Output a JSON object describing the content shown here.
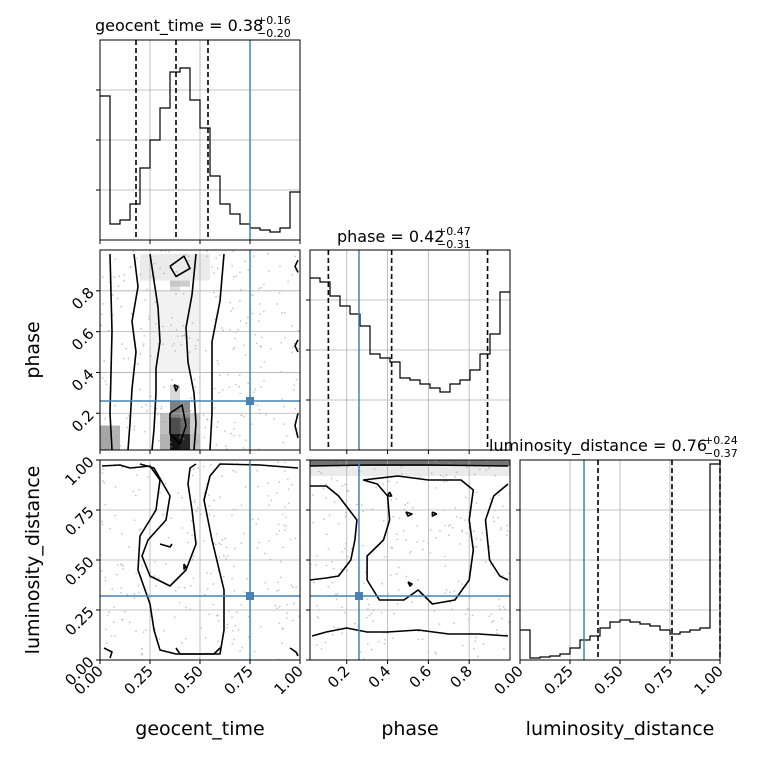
{
  "chart_data": {
    "type": "corner",
    "parameters": [
      "geocent_time",
      "phase",
      "luminosity_distance"
    ],
    "ranges": {
      "geocent_time": [
        0,
        1
      ],
      "phase": [
        0.02,
        1.0
      ],
      "luminosity_distance": [
        0,
        1
      ]
    },
    "truths": {
      "geocent_time": 0.75,
      "phase": 0.26,
      "luminosity_distance": 0.32
    },
    "colors": {
      "truth": "#4682b4",
      "contour": "#000000",
      "points": "#9a9a9a",
      "grid": "#b0b0b0"
    },
    "titles": [
      {
        "param": "geocent_time",
        "text": "geocent_time = 0.38",
        "sup": "+0.16",
        "sub": "−0.20"
      },
      {
        "param": "phase",
        "text": "phase = 0.42",
        "sup": "+0.47",
        "sub": "−0.31"
      },
      {
        "param": "luminosity_distance",
        "text": "luminosity_distance = 0.76",
        "sup": "+0.24",
        "sub": "−0.37"
      }
    ],
    "axis_labels": {
      "geocent_time": "geocent_time",
      "phase": "phase",
      "luminosity_distance": "luminosity_distance"
    },
    "ticks": {
      "geocent_time": [
        {
          "v": 0,
          "t": "0.00"
        },
        {
          "v": 0.25,
          "t": "0.25"
        },
        {
          "v": 0.5,
          "t": "0.50"
        },
        {
          "v": 0.75,
          "t": "0.75"
        },
        {
          "v": 1,
          "t": "1.00"
        }
      ],
      "phase": [
        {
          "v": 0.2,
          "t": "0.2"
        },
        {
          "v": 0.4,
          "t": "0.4"
        },
        {
          "v": 0.6,
          "t": "0.6"
        },
        {
          "v": 0.8,
          "t": "0.8"
        }
      ],
      "luminosity_distance": [
        {
          "v": 0,
          "t": "0.00"
        },
        {
          "v": 0.25,
          "t": "0.25"
        },
        {
          "v": 0.5,
          "t": "0.50"
        },
        {
          "v": 0.75,
          "t": "0.75"
        },
        {
          "v": 1,
          "t": "1.00"
        }
      ]
    },
    "quantiles": {
      "geocent_time": [
        0.18,
        0.38,
        0.54
      ],
      "phase": [
        0.11,
        0.42,
        0.89
      ],
      "luminosity_distance": [
        0.39,
        0.76,
        1.0
      ]
    },
    "histograms": {
      "geocent_time": {
        "edges": [
          0,
          0.05,
          0.1,
          0.15,
          0.2,
          0.25,
          0.3,
          0.35,
          0.4,
          0.45,
          0.5,
          0.55,
          0.6,
          0.65,
          0.7,
          0.75,
          0.8,
          0.85,
          0.9,
          0.95,
          1.0
        ],
        "counts": [
          0.72,
          0.08,
          0.1,
          0.18,
          0.36,
          0.5,
          0.66,
          0.84,
          0.86,
          0.7,
          0.56,
          0.32,
          0.18,
          0.13,
          0.08,
          0.06,
          0.05,
          0.04,
          0.06,
          0.24
        ]
      },
      "phase": {
        "edges": [
          0.02,
          0.069,
          0.118,
          0.167,
          0.216,
          0.265,
          0.314,
          0.363,
          0.412,
          0.461,
          0.51,
          0.559,
          0.608,
          0.657,
          0.706,
          0.755,
          0.804,
          0.853,
          0.902,
          0.951,
          1.0
        ],
        "counts": [
          0.86,
          0.84,
          0.77,
          0.72,
          0.68,
          0.62,
          0.48,
          0.46,
          0.44,
          0.36,
          0.35,
          0.33,
          0.31,
          0.29,
          0.33,
          0.35,
          0.4,
          0.48,
          0.58,
          0.79
        ]
      },
      "luminosity_distance": {
        "edges": [
          0,
          0.05,
          0.1,
          0.15,
          0.2,
          0.25,
          0.3,
          0.35,
          0.4,
          0.45,
          0.5,
          0.55,
          0.6,
          0.65,
          0.7,
          0.75,
          0.8,
          0.85,
          0.9,
          0.95,
          1.0
        ],
        "counts": [
          0.15,
          0.01,
          0.015,
          0.02,
          0.03,
          0.06,
          0.1,
          0.12,
          0.16,
          0.19,
          0.2,
          0.19,
          0.18,
          0.17,
          0.15,
          0.13,
          0.14,
          0.15,
          0.16,
          0.98
        ]
      }
    },
    "contours": {
      "phase_vs_geocent_time": [
        [
          [
            0.05,
            0.98
          ],
          [
            0.06,
            0.6
          ],
          [
            0.05,
            0.2
          ],
          [
            0.06,
            0.02
          ]
        ],
        [
          [
            0.17,
            0.98
          ],
          [
            0.19,
            0.82
          ],
          [
            0.16,
            0.65
          ],
          [
            0.18,
            0.5
          ],
          [
            0.16,
            0.32
          ],
          [
            0.15,
            0.15
          ],
          [
            0.14,
            0.02
          ]
        ],
        [
          [
            0.25,
            0.98
          ],
          [
            0.29,
            0.72
          ],
          [
            0.3,
            0.55
          ],
          [
            0.28,
            0.42
          ],
          [
            0.28,
            0.3
          ],
          [
            0.27,
            0.12
          ],
          [
            0.26,
            0.02
          ]
        ],
        [
          [
            0.48,
            0.98
          ],
          [
            0.46,
            0.78
          ],
          [
            0.43,
            0.62
          ],
          [
            0.44,
            0.45
          ],
          [
            0.47,
            0.3
          ],
          [
            0.48,
            0.15
          ],
          [
            0.47,
            0.02
          ]
        ],
        [
          [
            0.62,
            0.98
          ],
          [
            0.6,
            0.75
          ],
          [
            0.56,
            0.55
          ],
          [
            0.56,
            0.38
          ],
          [
            0.56,
            0.2
          ],
          [
            0.55,
            0.02
          ]
        ],
        [
          [
            0.99,
            0.95
          ],
          [
            0.975,
            0.92
          ],
          [
            0.99,
            0.89
          ]
        ],
        [
          [
            0.99,
            0.56
          ],
          [
            0.975,
            0.53
          ],
          [
            0.99,
            0.5
          ]
        ],
        [
          [
            0.99,
            0.2
          ],
          [
            0.975,
            0.14
          ],
          [
            0.99,
            0.08
          ]
        ],
        [
          [
            0.35,
            0.92
          ],
          [
            0.42,
            0.97
          ],
          [
            0.45,
            0.91
          ],
          [
            0.38,
            0.87
          ],
          [
            0.35,
            0.92
          ]
        ],
        [
          [
            0.37,
            0.34
          ],
          [
            0.39,
            0.33
          ],
          [
            0.38,
            0.31
          ],
          [
            0.37,
            0.34
          ]
        ],
        [
          [
            0.35,
            0.2
          ],
          [
            0.41,
            0.24
          ],
          [
            0.43,
            0.14
          ],
          [
            0.4,
            0.05
          ],
          [
            0.35,
            0.1
          ],
          [
            0.35,
            0.2
          ]
        ]
      ],
      "luminosity_distance_vs_geocent_time": [
        [
          [
            0.01,
            0.97
          ],
          [
            0.1,
            0.975
          ],
          [
            0.15,
            0.96
          ],
          [
            0.25,
            0.97
          ],
          [
            0.3,
            0.9
          ],
          [
            0.28,
            0.75
          ],
          [
            0.2,
            0.62
          ],
          [
            0.19,
            0.45
          ],
          [
            0.25,
            0.28
          ],
          [
            0.27,
            0.15
          ],
          [
            0.3,
            0.05
          ],
          [
            0.38,
            0.03
          ],
          [
            0.6,
            0.03
          ],
          [
            0.62,
            0.15
          ],
          [
            0.62,
            0.35
          ],
          [
            0.56,
            0.6
          ],
          [
            0.52,
            0.8
          ],
          [
            0.55,
            0.92
          ],
          [
            0.6,
            0.98
          ],
          [
            0.8,
            0.975
          ],
          [
            0.99,
            0.96
          ]
        ],
        [
          [
            0.2,
            0.98
          ],
          [
            0.27,
            0.96
          ],
          [
            0.35,
            0.82
          ],
          [
            0.33,
            0.7
          ],
          [
            0.24,
            0.6
          ],
          [
            0.21,
            0.52
          ],
          [
            0.25,
            0.42
          ],
          [
            0.35,
            0.37
          ],
          [
            0.43,
            0.45
          ],
          [
            0.48,
            0.58
          ],
          [
            0.46,
            0.75
          ],
          [
            0.44,
            0.88
          ],
          [
            0.45,
            0.96
          ],
          [
            0.48,
            0.98
          ]
        ],
        [
          [
            0.3,
            0.58
          ],
          [
            0.35,
            0.565
          ],
          [
            0.36,
            0.58
          ]
        ],
        [
          [
            0.42,
            0.48
          ],
          [
            0.43,
            0.465
          ],
          [
            0.42,
            0.455
          ],
          [
            0.42,
            0.48
          ]
        ],
        [
          [
            0.02,
            0.06
          ],
          [
            0.06,
            0.04
          ],
          [
            0.05,
            0.01
          ]
        ],
        [
          [
            0.38,
            0.06
          ],
          [
            0.4,
            0.03
          ],
          [
            0.57,
            0.03
          ],
          [
            0.6,
            0.06
          ]
        ],
        [
          [
            0.95,
            0.06
          ],
          [
            0.98,
            0.04
          ],
          [
            0.99,
            0.02
          ]
        ]
      ],
      "luminosity_distance_vs_phase": [
        [
          [
            0.02,
            0.97
          ],
          [
            0.3,
            0.975
          ],
          [
            0.6,
            0.975
          ],
          [
            0.99,
            0.97
          ]
        ],
        [
          [
            0.02,
            0.87
          ],
          [
            0.1,
            0.87
          ],
          [
            0.16,
            0.82
          ],
          [
            0.25,
            0.7
          ],
          [
            0.24,
            0.6
          ],
          [
            0.22,
            0.5
          ],
          [
            0.16,
            0.42
          ],
          [
            0.1,
            0.41
          ],
          [
            0.02,
            0.4
          ]
        ],
        [
          [
            0.03,
            0.12
          ],
          [
            0.1,
            0.14
          ],
          [
            0.2,
            0.16
          ],
          [
            0.3,
            0.14
          ],
          [
            0.4,
            0.14
          ],
          [
            0.55,
            0.15
          ],
          [
            0.7,
            0.13
          ],
          [
            0.85,
            0.13
          ],
          [
            0.99,
            0.12
          ]
        ],
        [
          [
            0.28,
            0.9
          ],
          [
            0.35,
            0.88
          ],
          [
            0.4,
            0.82
          ],
          [
            0.41,
            0.7
          ],
          [
            0.38,
            0.6
          ],
          [
            0.3,
            0.52
          ],
          [
            0.3,
            0.4
          ],
          [
            0.36,
            0.3
          ],
          [
            0.48,
            0.3
          ],
          [
            0.55,
            0.35
          ],
          [
            0.62,
            0.28
          ],
          [
            0.73,
            0.3
          ],
          [
            0.8,
            0.4
          ],
          [
            0.82,
            0.55
          ],
          [
            0.8,
            0.7
          ],
          [
            0.82,
            0.85
          ],
          [
            0.76,
            0.9
          ],
          [
            0.6,
            0.9
          ],
          [
            0.45,
            0.92
          ],
          [
            0.28,
            0.9
          ]
        ],
        [
          [
            0.99,
            0.88
          ],
          [
            0.92,
            0.82
          ],
          [
            0.88,
            0.7
          ],
          [
            0.9,
            0.5
          ],
          [
            0.95,
            0.42
          ],
          [
            0.99,
            0.4
          ]
        ],
        [
          [
            0.41,
            0.84
          ],
          [
            0.42,
            0.82
          ],
          [
            0.4,
            0.82
          ],
          [
            0.41,
            0.84
          ]
        ],
        [
          [
            0.49,
            0.74
          ],
          [
            0.52,
            0.73
          ],
          [
            0.5,
            0.72
          ],
          [
            0.49,
            0.74
          ]
        ],
        [
          [
            0.62,
            0.74
          ],
          [
            0.64,
            0.73
          ],
          [
            0.62,
            0.72
          ],
          [
            0.62,
            0.74
          ]
        ],
        [
          [
            0.5,
            0.39
          ],
          [
            0.52,
            0.38
          ],
          [
            0.51,
            0.37
          ],
          [
            0.5,
            0.39
          ]
        ]
      ]
    },
    "density_cells": {
      "phase_vs_geocent_time": [
        [
          0.0,
          0.02,
          0.05,
          0.12,
          0.35
        ],
        [
          0.05,
          0.02,
          0.05,
          0.12,
          0.3
        ],
        [
          0.35,
          0.9,
          0.05,
          0.08,
          0.5
        ],
        [
          0.4,
          0.9,
          0.05,
          0.08,
          0.35
        ],
        [
          0.35,
          0.82,
          0.05,
          0.08,
          0.22
        ],
        [
          0.4,
          0.82,
          0.05,
          0.08,
          0.2
        ],
        [
          0.35,
          0.74,
          0.05,
          0.08,
          0.12
        ],
        [
          0.35,
          0.02,
          0.05,
          0.08,
          0.92
        ],
        [
          0.4,
          0.02,
          0.05,
          0.08,
          0.85
        ],
        [
          0.35,
          0.1,
          0.05,
          0.08,
          0.7
        ],
        [
          0.4,
          0.1,
          0.05,
          0.08,
          0.6
        ],
        [
          0.35,
          0.18,
          0.05,
          0.08,
          0.5
        ],
        [
          0.4,
          0.18,
          0.05,
          0.08,
          0.45
        ],
        [
          0.3,
          0.1,
          0.05,
          0.1,
          0.25
        ],
        [
          0.45,
          0.1,
          0.05,
          0.1,
          0.2
        ],
        [
          0.35,
          0.26,
          0.05,
          0.08,
          0.15
        ],
        [
          0.3,
          0.02,
          0.05,
          0.08,
          0.3
        ],
        [
          0.45,
          0.02,
          0.05,
          0.08,
          0.25
        ],
        [
          0.25,
          0.4,
          0.25,
          0.4,
          0.05
        ],
        [
          0.2,
          0.85,
          0.35,
          0.13,
          0.08
        ]
      ],
      "luminosity_distance_vs_phase": [
        [
          0.02,
          0.97,
          0.98,
          0.03,
          0.55
        ],
        [
          0.02,
          0.92,
          0.98,
          0.05,
          0.08
        ]
      ]
    },
    "scatter_ranges": {
      "phase_vs_geocent_time": {
        "x": [
          0,
          1
        ],
        "y": [
          0.02,
          1.0
        ]
      },
      "luminosity_distance_vs_geocent_time": {
        "x": [
          0,
          1
        ],
        "y": [
          0,
          1
        ]
      },
      "luminosity_distance_vs_phase": {
        "x": [
          0.02,
          1.0
        ],
        "y": [
          0,
          1
        ]
      }
    }
  }
}
